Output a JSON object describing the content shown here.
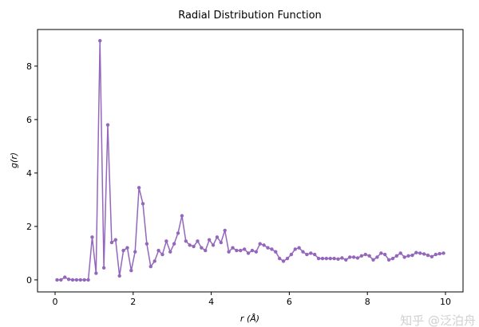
{
  "chart_data": {
    "type": "line",
    "title": "Radial Distribution Function",
    "xlabel": "r (Å)",
    "ylabel": "g(r)",
    "xlim": [
      -0.45,
      10.45
    ],
    "ylim": [
      -0.45,
      9.37
    ],
    "xticks": [
      0,
      2,
      4,
      6,
      8,
      10
    ],
    "yticks": [
      0,
      2,
      4,
      6,
      8
    ],
    "grid": false,
    "color": "#9467bd",
    "marker": "circle",
    "x_start": 0.05,
    "x_step": 0.1,
    "series": [
      {
        "values": [
          0,
          0,
          0.1,
          0.02,
          0,
          0,
          0,
          0,
          0,
          1.6,
          0.25,
          8.95,
          0.45,
          5.8,
          1.4,
          1.5,
          0.15,
          1.1,
          1.2,
          0.35,
          1.05,
          3.45,
          2.85,
          1.35,
          0.5,
          0.7,
          1.1,
          0.95,
          1.45,
          1.05,
          1.35,
          1.75,
          2.4,
          1.45,
          1.3,
          1.25,
          1.45,
          1.2,
          1.1,
          1.5,
          1.3,
          1.6,
          1.4,
          1.85,
          1.05,
          1.2,
          1.1,
          1.1,
          1.15,
          1.0,
          1.1,
          1.05,
          1.35,
          1.3,
          1.2,
          1.15,
          1.05,
          0.8,
          0.7,
          0.8,
          0.95,
          1.15,
          1.2,
          1.05,
          0.95,
          1.0,
          0.95,
          0.8,
          0.8,
          0.8,
          0.8,
          0.8,
          0.78,
          0.82,
          0.75,
          0.85,
          0.85,
          0.82,
          0.9,
          0.95,
          0.9,
          0.75,
          0.85,
          1.0,
          0.95,
          0.75,
          0.8,
          0.9,
          1.0,
          0.85,
          0.9,
          0.92,
          1.02,
          1.0,
          0.97,
          0.92,
          0.87,
          0.95,
          0.98,
          1.0
        ]
      }
    ]
  },
  "watermark": "知乎 @泛泊舟"
}
